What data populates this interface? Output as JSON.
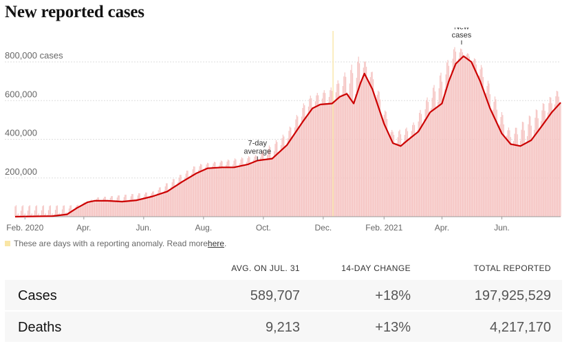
{
  "title": "New reported cases",
  "chart_data": {
    "type": "bar",
    "series": [
      {
        "name": "New cases",
        "kind": "bar",
        "color": "#f5c4c2"
      },
      {
        "name": "7-day average",
        "kind": "line",
        "color": "#cc0000"
      }
    ],
    "seven_day_average": [
      [
        "2020-01-22",
        0
      ],
      [
        "2020-02-29",
        3000
      ],
      [
        "2020-03-15",
        12000
      ],
      [
        "2020-03-25",
        45000
      ],
      [
        "2020-04-05",
        75000
      ],
      [
        "2020-04-12",
        82000
      ],
      [
        "2020-04-25",
        82000
      ],
      [
        "2020-05-10",
        78000
      ],
      [
        "2020-05-25",
        85000
      ],
      [
        "2020-06-10",
        105000
      ],
      [
        "2020-06-25",
        130000
      ],
      [
        "2020-07-10",
        180000
      ],
      [
        "2020-07-25",
        225000
      ],
      [
        "2020-08-05",
        250000
      ],
      [
        "2020-08-20",
        255000
      ],
      [
        "2020-09-01",
        255000
      ],
      [
        "2020-09-15",
        270000
      ],
      [
        "2020-09-25",
        290000
      ],
      [
        "2020-10-10",
        300000
      ],
      [
        "2020-10-25",
        370000
      ],
      [
        "2020-11-10",
        490000
      ],
      [
        "2020-11-20",
        560000
      ],
      [
        "2020-11-28",
        580000
      ],
      [
        "2020-12-10",
        585000
      ],
      [
        "2020-12-18",
        620000
      ],
      [
        "2020-12-25",
        635000
      ],
      [
        "2021-01-01",
        585000
      ],
      [
        "2021-01-08",
        690000
      ],
      [
        "2021-01-12",
        740000
      ],
      [
        "2021-01-20",
        660000
      ],
      [
        "2021-02-01",
        480000
      ],
      [
        "2021-02-10",
        380000
      ],
      [
        "2021-02-18",
        365000
      ],
      [
        "2021-02-25",
        395000
      ],
      [
        "2021-03-08",
        440000
      ],
      [
        "2021-03-20",
        540000
      ],
      [
        "2021-04-01",
        585000
      ],
      [
        "2021-04-08",
        700000
      ],
      [
        "2021-04-15",
        790000
      ],
      [
        "2021-04-23",
        830000
      ],
      [
        "2021-05-01",
        800000
      ],
      [
        "2021-05-10",
        700000
      ],
      [
        "2021-05-20",
        560000
      ],
      [
        "2021-06-01",
        430000
      ],
      [
        "2021-06-10",
        375000
      ],
      [
        "2021-06-20",
        365000
      ],
      [
        "2021-07-01",
        395000
      ],
      [
        "2021-07-12",
        470000
      ],
      [
        "2021-07-22",
        540000
      ],
      [
        "2021-07-31",
        589707
      ]
    ],
    "daily_envelope": [
      [
        "2020-03-25",
        60000
      ],
      [
        "2020-04-15",
        100000
      ],
      [
        "2020-06-10",
        130000
      ],
      [
        "2020-07-25",
        270000
      ],
      [
        "2020-09-25",
        320000
      ],
      [
        "2020-10-25",
        440000
      ],
      [
        "2020-11-15",
        620000
      ],
      [
        "2020-12-10",
        670000
      ],
      [
        "2021-01-08",
        840000
      ],
      [
        "2021-01-20",
        750000
      ],
      [
        "2021-02-10",
        440000
      ],
      [
        "2021-03-01",
        470000
      ],
      [
        "2021-04-15",
        890000
      ],
      [
        "2021-05-10",
        800000
      ],
      [
        "2021-06-10",
        440000
      ],
      [
        "2021-07-31",
        670000
      ]
    ],
    "anomaly_spike": [
      "2020-12-11",
      960000
    ],
    "ylim": [
      0,
      960000
    ],
    "yticks": [
      {
        "value": 200000,
        "label": "200,000"
      },
      {
        "value": 400000,
        "label": "400,000"
      },
      {
        "value": 600000,
        "label": "600,000"
      },
      {
        "value": 800000,
        "label": "800,000 cases"
      }
    ],
    "xticks": [
      {
        "date": "2020-02-01",
        "label": "Feb. 2020"
      },
      {
        "date": "2020-04-01",
        "label": "Apr."
      },
      {
        "date": "2020-06-01",
        "label": "Jun."
      },
      {
        "date": "2020-08-01",
        "label": "Aug."
      },
      {
        "date": "2020-10-01",
        "label": "Oct."
      },
      {
        "date": "2020-12-01",
        "label": "Dec."
      },
      {
        "date": "2021-02-01",
        "label": "Feb. 2021"
      },
      {
        "date": "2021-04-01",
        "label": "Apr."
      },
      {
        "date": "2021-06-01",
        "label": "Jun."
      }
    ],
    "xlim": [
      "2020-01-22",
      "2021-07-31"
    ],
    "annotations": [
      {
        "lines": [
          "7-day",
          "average"
        ],
        "date": "2020-09-25",
        "value": 290000
      },
      {
        "lines": [
          "New",
          "cases"
        ],
        "date": "2021-04-21",
        "value": 890000
      }
    ],
    "grid": true
  },
  "anomaly_note": {
    "text": "These are days with a reporting anomaly. Read more ",
    "link": "here",
    "end": ".",
    "swatch_color": "#f9e6a6"
  },
  "stats": {
    "headers": {
      "avg": "AVG. ON JUL. 31",
      "change": "14-DAY CHANGE",
      "total": "TOTAL REPORTED"
    },
    "rows": [
      {
        "label": "Cases",
        "avg": "589,707",
        "change": "+18%",
        "total": "197,925,529"
      },
      {
        "label": "Deaths",
        "avg": "9,213",
        "change": "+13%",
        "total": "4,217,170"
      }
    ]
  }
}
